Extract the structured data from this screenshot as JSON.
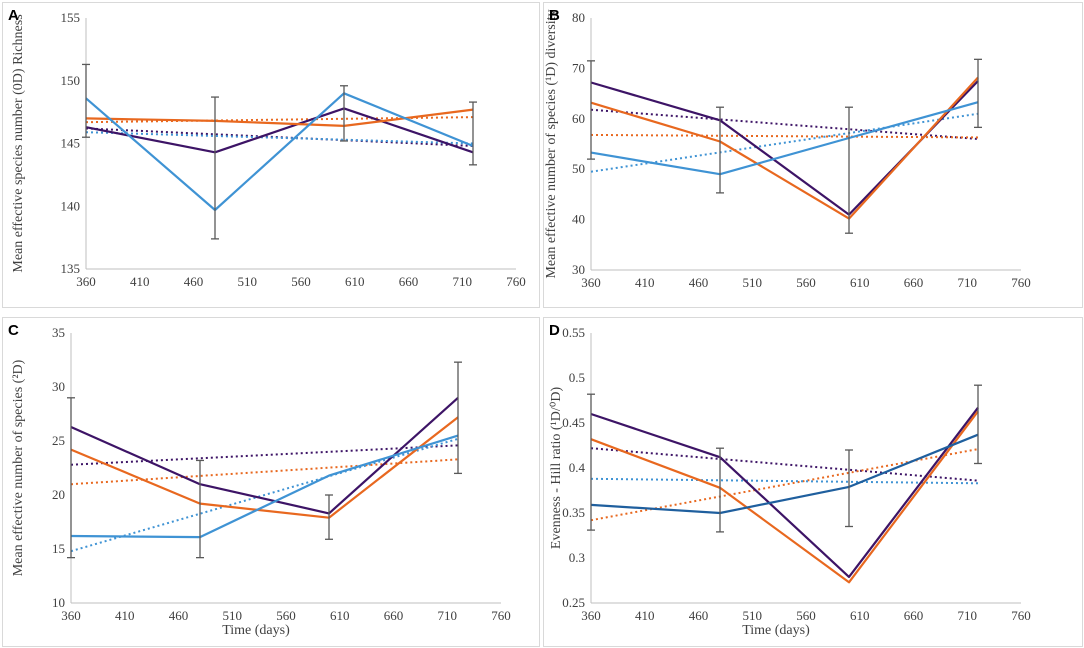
{
  "colors": {
    "purple": "#3d1466",
    "orange": "#e8681f",
    "lightblue": "#3f93d4",
    "darkblue": "#1f5f9e",
    "errorbar": "#595959",
    "axis": "#bfbfbf",
    "text": "#404040"
  },
  "chart_data": [
    {
      "type": "line",
      "panel": "A",
      "xlabel": "",
      "ylabel": "Mean effective species number (0D) Richness",
      "xlim": [
        360,
        760
      ],
      "ylim": [
        135,
        155
      ],
      "xticks": [
        "360",
        "410",
        "460",
        "510",
        "560",
        "610",
        "660",
        "710",
        "760"
      ],
      "yticks": [
        "135",
        "140",
        "145",
        "150",
        "155"
      ],
      "series": [
        {
          "name": "purple",
          "color": "#3d1466",
          "x": [
            360,
            480,
            600,
            720
          ],
          "y": [
            146.3,
            144.3,
            147.8,
            144.3
          ]
        },
        {
          "name": "orange",
          "color": "#e8681f",
          "x": [
            360,
            480,
            600,
            720
          ],
          "y": [
            147.0,
            146.8,
            146.4,
            147.7
          ]
        },
        {
          "name": "lightblue",
          "color": "#3f93d4",
          "x": [
            360,
            480,
            600,
            720
          ],
          "y": [
            148.6,
            139.7,
            149.0,
            144.8
          ]
        }
      ],
      "trendlines": [
        {
          "name": "purple",
          "color": "#3d1466",
          "y": [
            146.2,
            144.8
          ]
        },
        {
          "name": "orange",
          "color": "#e8681f",
          "y": [
            146.7,
            147.1
          ]
        },
        {
          "name": "lightblue",
          "color": "#3f93d4",
          "y": [
            145.9,
            145.0
          ]
        }
      ],
      "errorbars": [
        {
          "x": 360,
          "low": 145.5,
          "high": 151.3
        },
        {
          "x": 480,
          "low": 137.4,
          "high": 148.7
        },
        {
          "x": 600,
          "low": 145.2,
          "high": 149.6
        },
        {
          "x": 720,
          "low": 143.3,
          "high": 148.3
        }
      ]
    },
    {
      "type": "line",
      "panel": "B",
      "xlabel": "",
      "ylabel": "Mean effective number of species (¹D) diversity",
      "xlim": [
        360,
        760
      ],
      "ylim": [
        30,
        80
      ],
      "xticks": [
        "360",
        "410",
        "460",
        "510",
        "560",
        "610",
        "660",
        "710",
        "760"
      ],
      "yticks": [
        "30",
        "40",
        "50",
        "60",
        "70",
        "80"
      ],
      "series": [
        {
          "name": "purple",
          "color": "#3d1466",
          "x": [
            360,
            480,
            600,
            720
          ],
          "y": [
            67.2,
            59.7,
            41.0,
            67.5
          ]
        },
        {
          "name": "orange",
          "color": "#e8681f",
          "x": [
            360,
            480,
            600,
            720
          ],
          "y": [
            63.2,
            55.5,
            40.2,
            68.2
          ]
        },
        {
          "name": "lightblue",
          "color": "#3f93d4",
          "x": [
            360,
            480,
            600,
            720
          ],
          "y": [
            53.3,
            49.0,
            56.2,
            63.3
          ]
        }
      ],
      "trendlines": [
        {
          "name": "purple",
          "color": "#3d1466",
          "y": [
            61.8,
            56.0
          ]
        },
        {
          "name": "orange",
          "color": "#e8681f",
          "y": [
            56.8,
            56.3
          ]
        },
        {
          "name": "lightblue",
          "color": "#3f93d4",
          "y": [
            49.5,
            61.0
          ]
        }
      ],
      "errorbars": [
        {
          "x": 360,
          "low": 52.0,
          "high": 71.5
        },
        {
          "x": 480,
          "low": 45.3,
          "high": 62.3
        },
        {
          "x": 600,
          "low": 37.3,
          "high": 62.3
        },
        {
          "x": 720,
          "low": 58.3,
          "high": 71.8
        }
      ]
    },
    {
      "type": "line",
      "panel": "C",
      "xlabel": "Time (days)",
      "ylabel": "Mean effective number of species (²D)",
      "xlim": [
        360,
        760
      ],
      "ylim": [
        10,
        35
      ],
      "xticks": [
        "360",
        "410",
        "460",
        "510",
        "560",
        "610",
        "660",
        "710",
        "760"
      ],
      "yticks": [
        "10",
        "15",
        "20",
        "25",
        "30",
        "35"
      ],
      "series": [
        {
          "name": "purple",
          "color": "#3d1466",
          "x": [
            360,
            480,
            600,
            720
          ],
          "y": [
            26.3,
            21.0,
            18.3,
            29.0
          ]
        },
        {
          "name": "orange",
          "color": "#e8681f",
          "x": [
            360,
            480,
            600,
            720
          ],
          "y": [
            24.2,
            19.2,
            17.9,
            27.2
          ]
        },
        {
          "name": "lightblue",
          "color": "#3f93d4",
          "x": [
            360,
            480,
            600,
            720
          ],
          "y": [
            16.2,
            16.1,
            21.8,
            25.5
          ]
        }
      ],
      "trendlines": [
        {
          "name": "purple",
          "color": "#3d1466",
          "y": [
            22.8,
            24.6
          ]
        },
        {
          "name": "orange",
          "color": "#e8681f",
          "y": [
            21.0,
            23.3
          ]
        },
        {
          "name": "lightblue",
          "color": "#3f93d4",
          "y": [
            14.8,
            25.2
          ]
        }
      ],
      "errorbars": [
        {
          "x": 360,
          "low": 14.2,
          "high": 29.0
        },
        {
          "x": 480,
          "low": 14.2,
          "high": 23.2
        },
        {
          "x": 600,
          "low": 15.9,
          "high": 20.0
        },
        {
          "x": 720,
          "low": 22.0,
          "high": 32.3
        }
      ]
    },
    {
      "type": "line",
      "panel": "D",
      "xlabel": "Time (days)",
      "ylabel": "Evenness - Hill ratio (¹D/⁰D)",
      "xlim": [
        360,
        760
      ],
      "ylim": [
        0.25,
        0.55
      ],
      "xticks": [
        "360",
        "410",
        "460",
        "510",
        "560",
        "610",
        "660",
        "710",
        "760"
      ],
      "yticks": [
        "0.25",
        "0.3",
        "0.35",
        "0.4",
        "0.45",
        "0.5",
        "0.55"
      ],
      "series": [
        {
          "name": "purple",
          "color": "#3d1466",
          "x": [
            360,
            480,
            600,
            720
          ],
          "y": [
            0.46,
            0.412,
            0.279,
            0.467
          ]
        },
        {
          "name": "orange",
          "color": "#e8681f",
          "x": [
            360,
            480,
            600,
            720
          ],
          "y": [
            0.432,
            0.378,
            0.273,
            0.463
          ]
        },
        {
          "name": "darkblue",
          "color": "#1f5f9e",
          "x": [
            360,
            480,
            600,
            720
          ],
          "y": [
            0.359,
            0.35,
            0.379,
            0.437
          ]
        }
      ],
      "trendlines": [
        {
          "name": "purple",
          "color": "#3d1466",
          "y": [
            0.422,
            0.386
          ]
        },
        {
          "name": "orange",
          "color": "#e8681f",
          "y": [
            0.342,
            0.421
          ]
        },
        {
          "name": "lightblue",
          "color": "#3f93d4",
          "y": [
            0.388,
            0.383
          ]
        }
      ],
      "errorbars": [
        {
          "x": 360,
          "low": 0.331,
          "high": 0.482
        },
        {
          "x": 480,
          "low": 0.329,
          "high": 0.422
        },
        {
          "x": 600,
          "low": 0.335,
          "high": 0.42
        },
        {
          "x": 720,
          "low": 0.405,
          "high": 0.492
        }
      ]
    }
  ]
}
